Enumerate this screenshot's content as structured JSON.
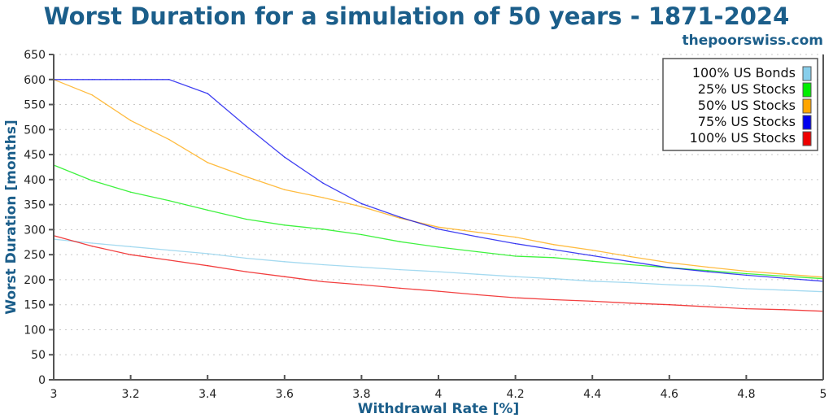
{
  "chart_data": {
    "type": "line",
    "title": "Worst Duration for a simulation of 50 years - 1871-2024",
    "subtitle": "thepoorswiss.com",
    "xlabel": "Withdrawal Rate [%]",
    "ylabel": "Worst Duration [months]",
    "xlim": [
      3,
      5
    ],
    "ylim": [
      0,
      650
    ],
    "xticks": [
      "3",
      "3.2",
      "3.4",
      "3.6",
      "3.8",
      "4",
      "4.2",
      "4.4",
      "4.6",
      "4.8",
      "5"
    ],
    "xtick_values": [
      3,
      3.2,
      3.4,
      3.6,
      3.8,
      4,
      4.2,
      4.4,
      4.6,
      4.8,
      5
    ],
    "yticks": [
      "0",
      "50",
      "100",
      "150",
      "200",
      "250",
      "300",
      "350",
      "400",
      "450",
      "500",
      "550",
      "600",
      "650"
    ],
    "ytick_values": [
      0,
      50,
      100,
      150,
      200,
      250,
      300,
      350,
      400,
      450,
      500,
      550,
      600,
      650
    ],
    "grid": true,
    "legend_position": "top-right",
    "x": [
      3.0,
      3.1,
      3.2,
      3.3,
      3.4,
      3.5,
      3.6,
      3.7,
      3.8,
      3.9,
      4.0,
      4.1,
      4.2,
      4.3,
      4.4,
      4.5,
      4.6,
      4.7,
      4.8,
      4.9,
      5.0
    ],
    "series": [
      {
        "name": "100% US Bonds",
        "color": "#87ceeb",
        "values": [
          281,
          273,
          266,
          259,
          252,
          243,
          236,
          230,
          225,
          220,
          216,
          211,
          206,
          202,
          197,
          194,
          190,
          187,
          182,
          179,
          176
        ]
      },
      {
        "name": "25% US Stocks",
        "color": "#00ee00",
        "values": [
          429,
          398,
          375,
          358,
          339,
          321,
          309,
          301,
          290,
          276,
          265,
          256,
          247,
          244,
          237,
          230,
          224,
          218,
          212,
          207,
          202
        ]
      },
      {
        "name": "50% US Stocks",
        "color": "#ffa500",
        "values": [
          600,
          569,
          518,
          480,
          434,
          406,
          380,
          364,
          346,
          323,
          305,
          295,
          285,
          270,
          259,
          246,
          234,
          225,
          217,
          211,
          205
        ]
      },
      {
        "name": "75% US Stocks",
        "color": "#0000ee",
        "values": [
          600,
          600,
          600,
          600,
          572,
          507,
          445,
          393,
          352,
          325,
          301,
          286,
          272,
          260,
          248,
          236,
          224,
          216,
          209,
          203,
          197
        ]
      },
      {
        "name": "100% US Stocks",
        "color": "#ee0000",
        "values": [
          288,
          267,
          250,
          239,
          228,
          216,
          206,
          196,
          190,
          183,
          177,
          170,
          164,
          160,
          157,
          153,
          150,
          146,
          142,
          140,
          137
        ]
      }
    ]
  }
}
